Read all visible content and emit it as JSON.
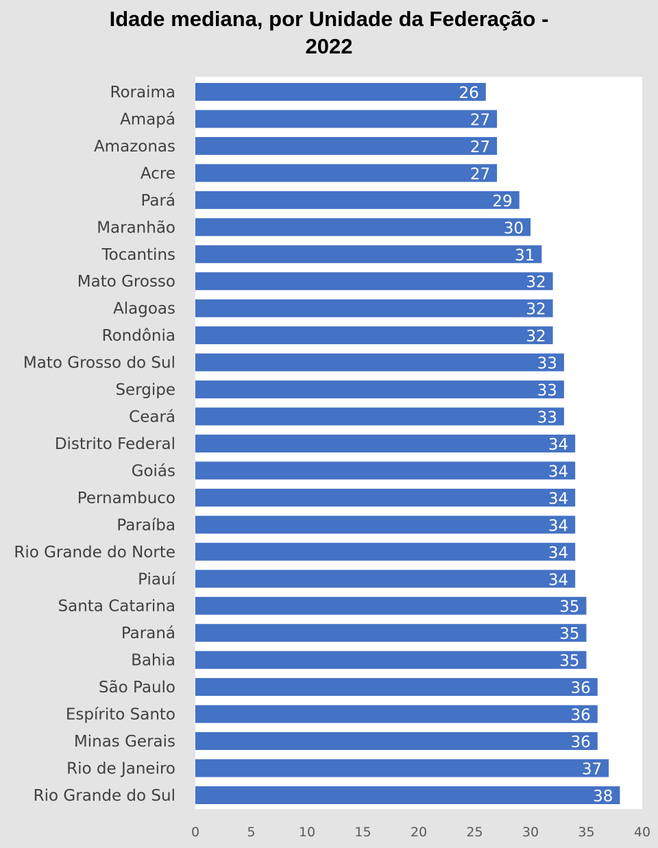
{
  "chart_data": {
    "type": "bar",
    "orientation": "horizontal",
    "title": "Idade mediana, por Unidade da Federação -\n2022",
    "categories": [
      "Roraima",
      "Amapá",
      "Amazonas",
      "Acre",
      "Pará",
      "Maranhão",
      "Tocantins",
      "Mato Grosso",
      "Alagoas",
      "Rondônia",
      "Mato Grosso do Sul",
      "Sergipe",
      "Ceará",
      "Distrito Federal",
      "Goiás",
      "Pernambuco",
      "Paraíba",
      "Rio Grande do Norte",
      "Piauí",
      "Santa Catarina",
      "Paraná",
      "Bahia",
      "São Paulo",
      "Espírito Santo",
      "Minas Gerais",
      "Rio de Janeiro",
      "Rio Grande do Sul"
    ],
    "values": [
      26,
      27,
      27,
      27,
      29,
      30,
      31,
      32,
      32,
      32,
      33,
      33,
      33,
      34,
      34,
      34,
      34,
      34,
      34,
      35,
      35,
      35,
      36,
      36,
      36,
      37,
      38
    ],
    "xlim": [
      0,
      40
    ],
    "xticks": [
      0,
      5,
      10,
      15,
      20,
      25,
      30,
      35,
      40
    ],
    "grid": false,
    "data_labels": true,
    "bar_color": "#4472c4",
    "plot_background": "#ffffff",
    "page_background": "#e5e4e4"
  }
}
